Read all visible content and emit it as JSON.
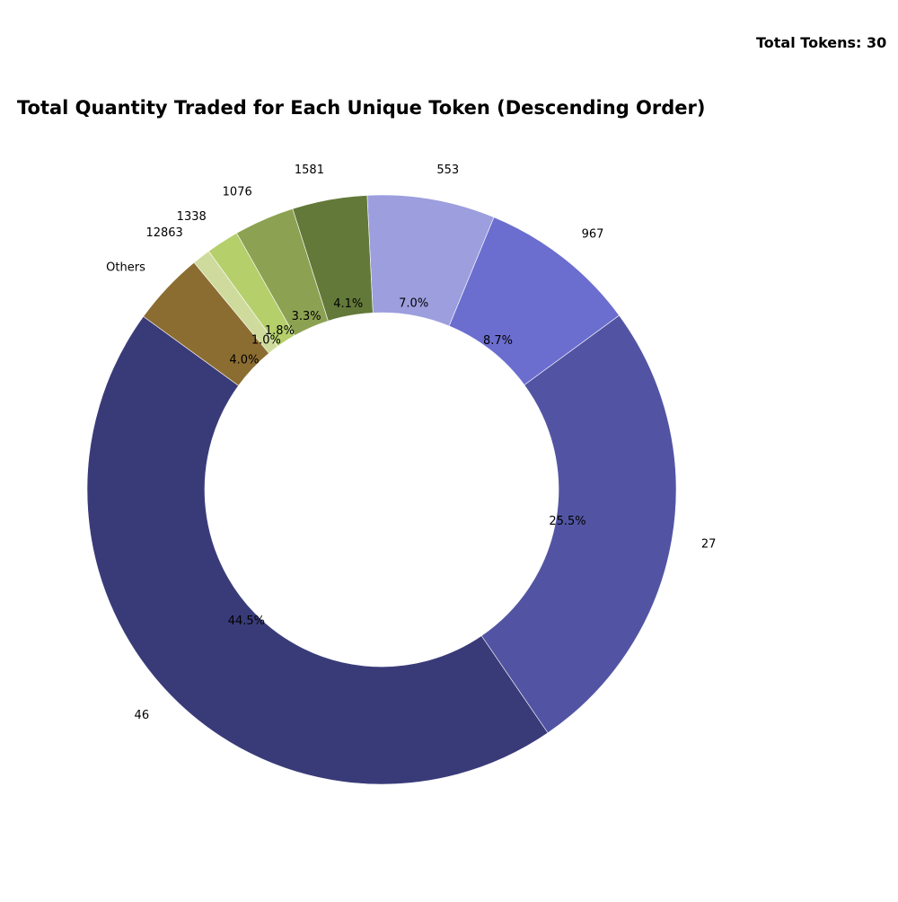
{
  "chart_data": {
    "type": "pie",
    "style": "donut",
    "title": "Total Quantity Traded for Each Unique Token (Descending Order)",
    "annotation": "Total Tokens: 30",
    "start_angle_deg": 144,
    "direction": "counterclockwise",
    "slices": [
      {
        "label": "46",
        "percent": 44.5,
        "pct_text": "44.5%",
        "color": "#393b79"
      },
      {
        "label": "27",
        "percent": 25.5,
        "pct_text": "25.5%",
        "color": "#5254a3"
      },
      {
        "label": "967",
        "percent": 8.7,
        "pct_text": "8.7%",
        "color": "#6b6ecf"
      },
      {
        "label": "553",
        "percent": 7.0,
        "pct_text": "7.0%",
        "color": "#9c9ede"
      },
      {
        "label": "1581",
        "percent": 4.1,
        "pct_text": "4.1%",
        "color": "#637939"
      },
      {
        "label": "1076",
        "percent": 3.3,
        "pct_text": "3.3%",
        "color": "#8ca252"
      },
      {
        "label": "1338",
        "percent": 1.8,
        "pct_text": "1.8%",
        "color": "#b5cf6b"
      },
      {
        "label": "12863",
        "percent": 1.0,
        "pct_text": "1.0%",
        "color": "#cedb9c"
      },
      {
        "label": "Others",
        "percent": 4.0,
        "pct_text": "4.0%",
        "color": "#8c6d31"
      }
    ]
  }
}
